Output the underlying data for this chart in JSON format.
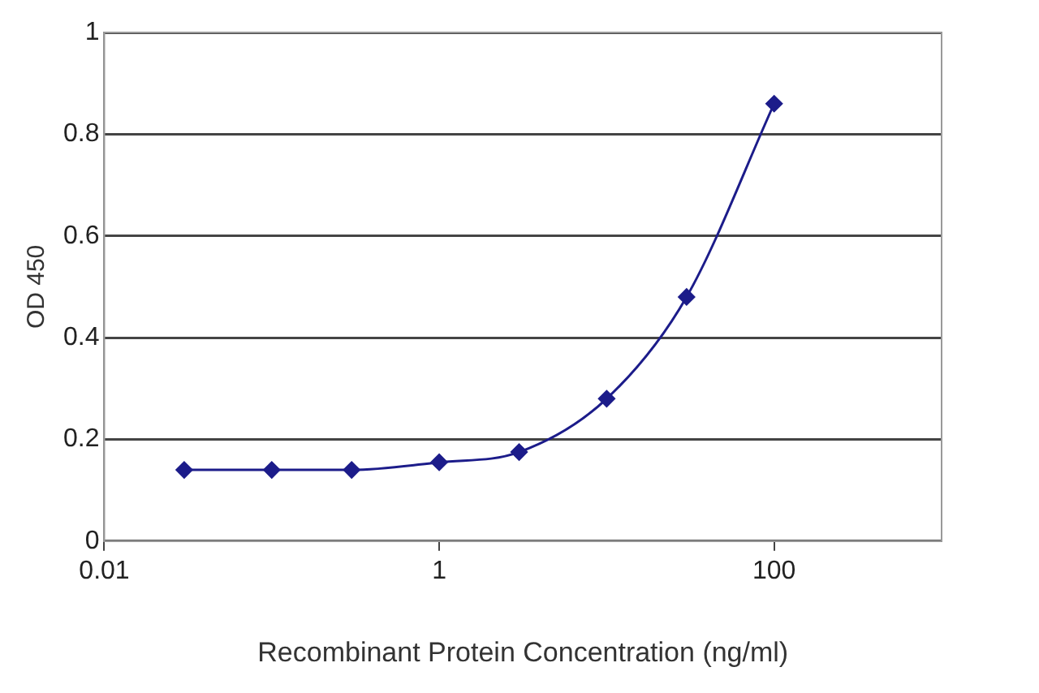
{
  "chart_data": {
    "type": "line",
    "xlabel": "Recombinant Protein Concentration (ng/ml)",
    "ylabel": "OD 450",
    "x": [
      0.03,
      0.1,
      0.3,
      1,
      3,
      10,
      30,
      100
    ],
    "series": [
      {
        "color": "#1c1c8a",
        "values": [
          0.14,
          0.14,
          0.14,
          0.155,
          0.175,
          0.28,
          0.48,
          0.86
        ]
      }
    ],
    "log": "x",
    "xlim": [
      0.01,
      1000
    ],
    "xticks": [
      0.01,
      1,
      100
    ],
    "ylim": [
      0,
      1
    ],
    "yticks": [
      0,
      0.2,
      0.4,
      0.6,
      0.8,
      1
    ],
    "grid": "y",
    "legend": false,
    "marker": "diamond",
    "line_style": "solid"
  }
}
